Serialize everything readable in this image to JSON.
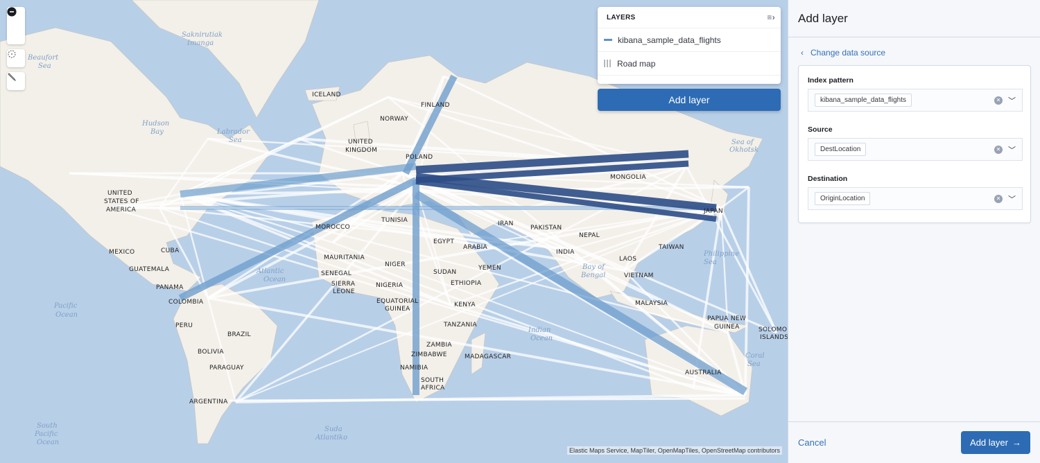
{
  "map": {
    "labels": [
      "ICELAND",
      "FINLAND",
      "NORWAY",
      "UNITED",
      "KINGDOM",
      "POLAND",
      "MONGOLIA",
      "UNITED",
      "STATES OF",
      "AMERICA",
      "TUNISIA",
      "MOROCCO",
      "EGYPT",
      "ARABIA",
      "IRAN",
      "PAKISTAN",
      "INDIA",
      "NEPAL",
      "JAPAN",
      "TAIWAN",
      "MEXICO",
      "CUBA",
      "GUATEMALA",
      "PANAMA",
      "COLOMBIA",
      "MAURITANIA",
      "SENEGAL",
      "NIGER",
      "SUDAN",
      "YEMEN",
      "SIERRA",
      "LEONE",
      "NIGERIA",
      "ETHIOPIA",
      "EQUATORIAL",
      "GUINEA",
      "KENYA",
      "LAOS",
      "VIETNAM",
      "MALAYSIA",
      "PAPUA NEW",
      "GUINEA",
      "SOLOMON",
      "ISLANDS",
      "TANZANIA",
      "ZAMBIA",
      "ZIMBABWE",
      "MADAGASCAR",
      "NAMIBIA",
      "SOUTH",
      "AFRICA",
      "PERU",
      "BRAZIL",
      "BOLIVIA",
      "PARAGUAY",
      "ARGENTINA",
      "AUSTRALIA"
    ],
    "seas": [
      "Saknirutiak",
      "Imanga",
      "Beaufort",
      "Sea",
      "Hudson",
      "Bay",
      "Labrador",
      "Sea",
      "Sea of",
      "Okhotsk",
      "Atlantic",
      "Ocean",
      "Pacific",
      "Ocean",
      "Bay of",
      "Bengal",
      "Indian",
      "Ocean",
      "Coral",
      "Sea",
      "South",
      "Pacific",
      "Ocean",
      "Suda",
      "Atlantiko",
      "Philippine",
      "Sea"
    ],
    "attribution": "Elastic Maps Service, MapTiler, OpenMapTiles, OpenStreetMap contributors",
    "controls": {
      "zoom_in": "zoom-in",
      "zoom_out": "zoom-out",
      "locate": "crosshair",
      "tools": "wrench"
    }
  },
  "layers_panel": {
    "title": "LAYERS",
    "layers": [
      {
        "name": "kibana_sample_data_flights",
        "icon": "line-swatch",
        "color": "#6092c0"
      },
      {
        "name": "Road map",
        "icon": "grid-tile"
      }
    ],
    "add_button": "Add layer"
  },
  "flyout": {
    "title": "Add layer",
    "back_link": "Change data source",
    "fields": [
      {
        "label": "Index pattern",
        "value": "kibana_sample_data_flights"
      },
      {
        "label": "Source",
        "value": "DestLocation"
      },
      {
        "label": "Destination",
        "value": "OriginLocation"
      }
    ],
    "cancel": "Cancel",
    "submit": "Add layer"
  },
  "colors": {
    "accent": "#2d6bb4",
    "water": "#b8cfe8",
    "land": "#f3f0ea",
    "flight_dark": "#2c4c87",
    "flight_mid": "#6f9fcd"
  }
}
